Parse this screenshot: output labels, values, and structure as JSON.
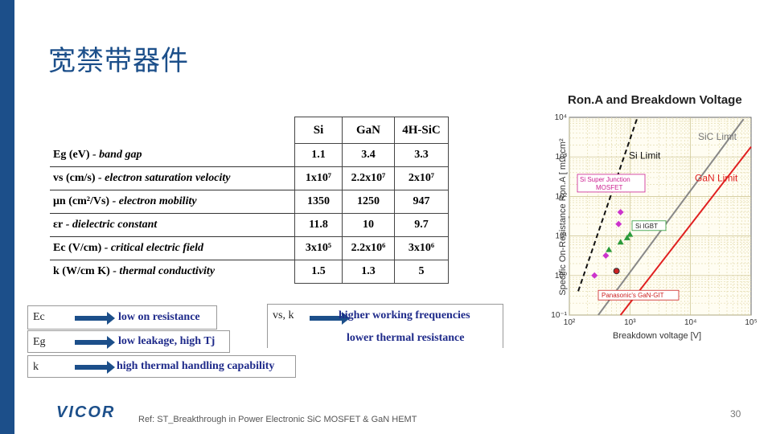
{
  "slide": {
    "title": "宽禁带器件",
    "logo": "VICOR",
    "reference": "Ref: ST_Breakthrough in Power Electronic SiC MOSFET & GaN HEMT",
    "page_number": "30",
    "accent_color": "#1c4f8a"
  },
  "table": {
    "headers": [
      "Si",
      "GaN",
      "4H-SiC"
    ],
    "rows": [
      {
        "symbol": "Eg (eV)",
        "desc": " - band gap",
        "values": [
          "1.1",
          "3.4",
          "3.3"
        ]
      },
      {
        "symbol": "vs (cm/s)",
        "desc": " - electron saturation velocity",
        "values": [
          "1x10⁷",
          "2.2x10⁷",
          "2x10⁷"
        ]
      },
      {
        "symbol": "μn (cm²/Vs)",
        "desc": " - electron mobility",
        "values": [
          "1350",
          "1250",
          "947"
        ]
      },
      {
        "symbol": "εr",
        "desc": " - dielectric constant",
        "values": [
          "11.8",
          "10",
          "9.7"
        ]
      },
      {
        "symbol": "Ec (V/cm)",
        "desc": " - critical electric field",
        "values": [
          "3x10⁵",
          "2.2x10⁶",
          "3x10⁶"
        ]
      },
      {
        "symbol": "k (W/cm K)",
        "desc": " - thermal conductivity",
        "values": [
          "1.5",
          "1.3",
          "5"
        ]
      }
    ]
  },
  "implications": {
    "ec": {
      "symbol": "Ec",
      "text": "low on resistance"
    },
    "eg": {
      "symbol": "Eg",
      "text": "low leakage, high Tj"
    },
    "k": {
      "symbol": "k",
      "text": "high thermal handling capability"
    },
    "vs": {
      "symbol": "vs, k",
      "text": "higher working frequencies"
    },
    "vs2": {
      "text": "lower thermal resistance"
    }
  },
  "chart_data": {
    "type": "scatter",
    "title": "Ron.A and Breakdown Voltage",
    "xlabel": "Breakdown voltage [V]",
    "ylabel": "Specific On-Resistance Ron.A [ mΩ.cm² ]",
    "x_scale": "log",
    "y_scale": "log",
    "xlim": [
      100,
      100000
    ],
    "ylim": [
      0.1,
      10000
    ],
    "x_ticks": [
      "10²",
      "10³",
      "10⁴",
      "10⁵"
    ],
    "y_ticks": [
      "10⁻¹",
      "10⁰",
      "10¹",
      "10²",
      "10³",
      "10⁴"
    ],
    "limit_lines": [
      {
        "name": "Si Limit",
        "color": "#111111",
        "dashed": true,
        "points": [
          [
            140,
            0.4
          ],
          [
            1300,
            9000
          ]
        ]
      },
      {
        "name": "SiC Limit",
        "color": "#888888",
        "dashed": false,
        "points": [
          [
            300,
            0.1
          ],
          [
            75000,
            9000
          ]
        ]
      },
      {
        "name": "GaN Limit",
        "color": "#e02020",
        "dashed": false,
        "points": [
          [
            700,
            0.1
          ],
          [
            100000,
            1800
          ]
        ]
      }
    ],
    "annotations": [
      {
        "text": "Si Super Junction MOSFET",
        "color": "#cc2090"
      },
      {
        "text": "Si IGBT",
        "color": "#222222"
      },
      {
        "text": "Panasonic's GaN-GIT",
        "color": "#cc2020"
      }
    ],
    "series": [
      {
        "name": "Si Super Junction MOSFET",
        "color": "#cc33cc",
        "marker": "diamond",
        "points": [
          [
            260,
            1.0
          ],
          [
            400,
            3.2
          ],
          [
            650,
            20
          ],
          [
            700,
            40
          ]
        ]
      },
      {
        "name": "Si IGBT",
        "color": "#2a9a3a",
        "marker": "triangle",
        "points": [
          [
            450,
            4.5
          ],
          [
            700,
            7
          ],
          [
            900,
            9
          ],
          [
            1000,
            11
          ]
        ]
      },
      {
        "name": "Panasonic's GaN-GIT",
        "color": "#cc2222",
        "marker": "circle",
        "points": [
          [
            600,
            1.3
          ]
        ]
      }
    ]
  }
}
